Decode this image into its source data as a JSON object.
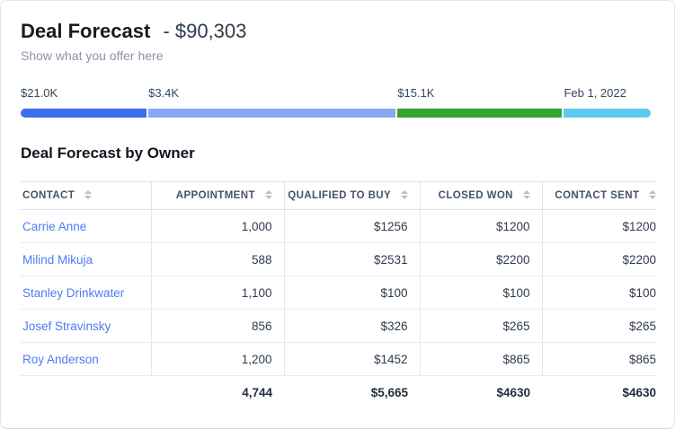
{
  "header": {
    "title": "Deal Forecast",
    "amount": "- $90,303",
    "subtitle": "Show what you offer here"
  },
  "milestones": {
    "items": [
      {
        "label": "$21.0K",
        "color": "#3c6ef0",
        "width_pct": "20.1%"
      },
      {
        "label": "$3.4K",
        "color": "#8aa7f4",
        "width_pct": "39.2%"
      },
      {
        "label": "$15.1K",
        "color": "#31a52e",
        "width_pct": "26.2%"
      },
      {
        "label": "Feb 1, 2022",
        "color": "#5ec8f2",
        "width_pct": "13.7%"
      }
    ]
  },
  "table": {
    "title": "Deal Forecast by Owner",
    "columns": [
      "CONTACT",
      "APPOINTMENT",
      "QUALIFIED TO BUY",
      "CLOSED WON",
      "CONTACT SENT"
    ],
    "rows": [
      {
        "contact": "Carrie Anne",
        "appointment": "1,000",
        "qualified_to_buy": "$1256",
        "closed_won": "$1200",
        "contact_sent": "$1200"
      },
      {
        "contact": "Milind Mikuja",
        "appointment": "588",
        "qualified_to_buy": "$2531",
        "closed_won": "$2200",
        "contact_sent": "$2200"
      },
      {
        "contact": "Stanley Drinkwater",
        "appointment": "1,100",
        "qualified_to_buy": "$100",
        "closed_won": "$100",
        "contact_sent": "$100"
      },
      {
        "contact": "Josef Stravinsky",
        "appointment": "856",
        "qualified_to_buy": "$326",
        "closed_won": "$265",
        "contact_sent": "$265"
      },
      {
        "contact": "Roy Anderson",
        "appointment": "1,200",
        "qualified_to_buy": "$1452",
        "closed_won": "$865",
        "contact_sent": "$865"
      }
    ],
    "totals": {
      "contact": "",
      "appointment": "4,744",
      "qualified_to_buy": "$5,665",
      "closed_won": "$4630",
      "contact_sent": "$4630"
    }
  }
}
